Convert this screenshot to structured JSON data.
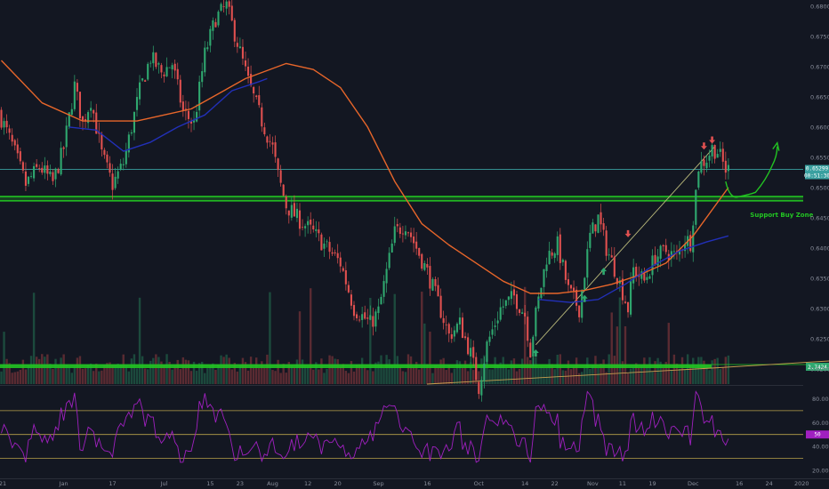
{
  "chart_data": {
    "type": "candlestick",
    "timeframe": "daily",
    "price_axis": {
      "range": [
        0.6175,
        0.681
      ],
      "tick_labels": [
        "0.68000",
        "0.67500",
        "0.67000",
        "0.66500",
        "0.66000",
        "0.65500",
        "0.65000",
        "0.64500",
        "0.64000",
        "0.63500",
        "0.63000",
        "0.62500",
        "0.62000"
      ],
      "current_price_label": "0.65299",
      "countdown_label": "00:51:30"
    },
    "x_axis": {
      "tick_labels": [
        "21",
        "Jan",
        "17",
        "Jul",
        "15",
        "23",
        "Aug",
        "12",
        "20",
        "Sep",
        "16",
        "Oct",
        "14",
        "22",
        "Nov",
        "11",
        "19",
        "Dec",
        "16",
        "24",
        "2020"
      ],
      "tick_values_approx": [
        0.5,
        23,
        41,
        60,
        77,
        88,
        100,
        113,
        124,
        139,
        157,
        176,
        193,
        204,
        218,
        229,
        240,
        255,
        272,
        283,
        295
      ]
    },
    "series": [
      {
        "name": "price_path_approx",
        "points": [
          [
            0,
            0.6625
          ],
          [
            5,
            0.657
          ],
          [
            10,
            0.6505
          ],
          [
            15,
            0.6535
          ],
          [
            20,
            0.6508
          ],
          [
            24,
            0.6565
          ],
          [
            28,
            0.6668
          ],
          [
            31,
            0.6605
          ],
          [
            34,
            0.6645
          ],
          [
            38,
            0.6555
          ],
          [
            42,
            0.6505
          ],
          [
            46,
            0.654
          ],
          [
            52,
            0.666
          ],
          [
            56,
            0.6715
          ],
          [
            60,
            0.669
          ],
          [
            64,
            0.6705
          ],
          [
            68,
            0.6625
          ],
          [
            72,
            0.6605
          ],
          [
            76,
            0.672
          ],
          [
            80,
            0.678
          ],
          [
            84,
            0.68
          ],
          [
            88,
            0.674
          ],
          [
            92,
            0.6675
          ],
          [
            97,
            0.661
          ],
          [
            101,
            0.6565
          ],
          [
            103,
            0.652
          ],
          [
            106,
            0.647
          ],
          [
            110,
            0.645
          ],
          [
            116,
            0.6425
          ],
          [
            122,
            0.6395
          ],
          [
            126,
            0.6375
          ],
          [
            131,
            0.63
          ],
          [
            137,
            0.6275
          ],
          [
            140,
            0.6295
          ],
          [
            146,
            0.6425
          ],
          [
            150,
            0.644
          ],
          [
            154,
            0.64
          ],
          [
            158,
            0.636
          ],
          [
            162,
            0.631
          ],
          [
            166,
            0.6255
          ],
          [
            170,
            0.6275
          ],
          [
            174,
            0.6225
          ],
          [
            177,
            0.617
          ],
          [
            180,
            0.624
          ],
          [
            185,
            0.63
          ],
          [
            190,
            0.632
          ],
          [
            194,
            0.629
          ],
          [
            196,
            0.623
          ],
          [
            198,
            0.629
          ],
          [
            202,
            0.6385
          ],
          [
            206,
            0.6405
          ],
          [
            210,
            0.633
          ],
          [
            214,
            0.63
          ],
          [
            218,
            0.642
          ],
          [
            221,
            0.645
          ],
          [
            224,
            0.64
          ],
          [
            228,
            0.6355
          ],
          [
            232,
            0.63
          ],
          [
            234,
            0.6365
          ],
          [
            238,
            0.6345
          ],
          [
            242,
            0.6385
          ],
          [
            246,
            0.6395
          ],
          [
            250,
            0.6385
          ],
          [
            253,
            0.6415
          ],
          [
            255,
            0.641
          ],
          [
            258,
            0.6535
          ],
          [
            261,
            0.6548
          ],
          [
            263,
            0.6565
          ],
          [
            265,
            0.656
          ],
          [
            268,
            0.653
          ]
        ]
      },
      {
        "name": "slow_moving_average_orange",
        "color": "#e8662a",
        "points": [
          [
            0,
            0.671
          ],
          [
            15,
            0.664
          ],
          [
            30,
            0.661
          ],
          [
            50,
            0.661
          ],
          [
            70,
            0.663
          ],
          [
            90,
            0.668
          ],
          [
            105,
            0.6705
          ],
          [
            115,
            0.6695
          ],
          [
            125,
            0.6665
          ],
          [
            135,
            0.66
          ],
          [
            145,
            0.651
          ],
          [
            155,
            0.644
          ],
          [
            165,
            0.6405
          ],
          [
            175,
            0.6375
          ],
          [
            185,
            0.6345
          ],
          [
            195,
            0.6325
          ],
          [
            205,
            0.6325
          ],
          [
            215,
            0.633
          ],
          [
            225,
            0.634
          ],
          [
            235,
            0.6355
          ],
          [
            245,
            0.6375
          ],
          [
            255,
            0.642
          ],
          [
            268,
            0.65
          ]
        ]
      },
      {
        "name": "fast_moving_average_blue",
        "color": "#2230b8",
        "points": [
          [
            25,
            0.66
          ],
          [
            35,
            0.6595
          ],
          [
            45,
            0.656
          ],
          [
            55,
            0.6575
          ],
          [
            65,
            0.66
          ],
          [
            75,
            0.662
          ],
          [
            85,
            0.666
          ],
          [
            95,
            0.6675
          ],
          [
            98,
            0.668
          ]
        ]
      },
      {
        "name": "fast_moving_average_blue_2",
        "color": "#2230b8",
        "points": [
          [
            198,
            0.6315
          ],
          [
            210,
            0.631
          ],
          [
            220,
            0.6315
          ],
          [
            230,
            0.634
          ],
          [
            240,
            0.637
          ],
          [
            250,
            0.6395
          ],
          [
            260,
            0.641
          ],
          [
            268,
            0.642
          ]
        ]
      }
    ],
    "horizontal_lines": [
      {
        "value": 0.65299,
        "color": "#3aa0a0",
        "role": "current_price"
      },
      {
        "value": 0.6485,
        "color": "#22c422",
        "role": "support_zone_top"
      },
      {
        "value": 0.6478,
        "color": "#22c422",
        "role": "support_zone_bottom"
      }
    ],
    "trendlines": [
      {
        "from": [
          197,
          0.624
        ],
        "to": [
          263,
          0.6568
        ],
        "color": "#b8b87a"
      }
    ],
    "arrows": [
      {
        "x": 197,
        "y": 0.6225,
        "direction": "up",
        "color": "#2fa86f"
      },
      {
        "x": 215,
        "y": 0.6315,
        "direction": "up",
        "color": "#2fa86f"
      },
      {
        "x": 222,
        "y": 0.636,
        "direction": "up",
        "color": "#2fa86f"
      },
      {
        "x": 231,
        "y": 0.6425,
        "direction": "down",
        "color": "#e05050"
      },
      {
        "x": 259,
        "y": 0.657,
        "direction": "down",
        "color": "#e05050"
      },
      {
        "x": 262,
        "y": 0.658,
        "direction": "down",
        "color": "#e05050"
      }
    ],
    "annotations": [
      {
        "text": "Support Buy Zone",
        "x": 276,
        "y": 0.6451,
        "color": "#22c422"
      }
    ],
    "projection": {
      "color": "#22c422",
      "points": [
        [
          267,
          0.651
        ],
        [
          272,
          0.6485
        ],
        [
          278,
          0.6492
        ],
        [
          284,
          0.6535
        ],
        [
          286,
          0.6568
        ]
      ]
    },
    "volume": {
      "label": "2.7424",
      "color": "#2fa86f",
      "zone_color": "#22c422"
    },
    "rsi": {
      "range": [
        14,
        90
      ],
      "tick_labels": [
        "80.00",
        "60.00",
        "40.00",
        "20.00"
      ],
      "tick_values": [
        80,
        60,
        40,
        20
      ],
      "current_label": "50",
      "levels": [
        70,
        50,
        30
      ],
      "level_color": "#b8a24a",
      "line_color": "#a020c0"
    },
    "colors": {
      "background": "#131722",
      "up_candle": "#2fa86f",
      "down_candle": "#e0504f",
      "axis_text": "#8a8f9c"
    }
  }
}
